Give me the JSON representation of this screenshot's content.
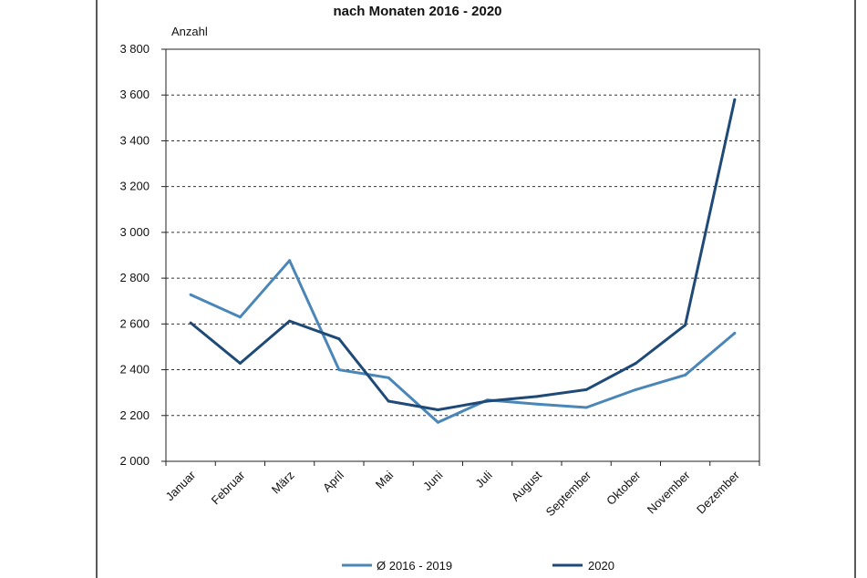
{
  "chart_data": {
    "type": "line",
    "title": "nach Monaten 2016 - 2020",
    "ylabel": "Anzahl",
    "xlabel": "",
    "categories": [
      "Januar",
      "Februar",
      "März",
      "April",
      "Mai",
      "Juni",
      "Juli",
      "August",
      "September",
      "Oktober",
      "November",
      "Dezember"
    ],
    "ylim": [
      2000,
      3800
    ],
    "yticks": [
      2000,
      2200,
      2400,
      2600,
      2800,
      3000,
      3200,
      3400,
      3600,
      3800
    ],
    "ytick_labels": [
      "2 000",
      "2 200",
      "2 400",
      "2 600",
      "2 800",
      "3 000",
      "3 200",
      "3 400",
      "3 600",
      "3 800"
    ],
    "grid": "horizontal dashed",
    "legend_position": "bottom",
    "series": [
      {
        "name": "Ø 2016 - 2019",
        "color": "#4a86b8",
        "values": [
          2728,
          2630,
          2877,
          2400,
          2365,
          2170,
          2268,
          2250,
          2235,
          2313,
          2377,
          2560
        ]
      },
      {
        "name": "2020",
        "color": "#1f4a78",
        "values": [
          2605,
          2428,
          2613,
          2535,
          2263,
          2225,
          2263,
          2283,
          2313,
          2428,
          2595,
          3580
        ]
      }
    ]
  }
}
